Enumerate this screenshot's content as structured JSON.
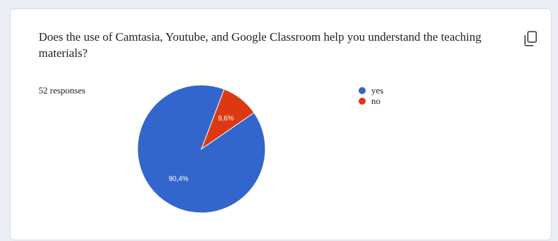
{
  "question": {
    "title": "Does the use of Camtasia, Youtube, and Google Classroom help you understand the teaching materials?",
    "responses": "52 responses"
  },
  "icons": {
    "copy": "copy-icon"
  },
  "chart_data": {
    "type": "pie",
    "slices": [
      {
        "label": "yes",
        "value": 90.4,
        "display": "90,4%",
        "color": "#3366cc"
      },
      {
        "label": "no",
        "value": 9.6,
        "display": "9,6%",
        "color": "#dc3912"
      }
    ],
    "legend_position": "right"
  }
}
